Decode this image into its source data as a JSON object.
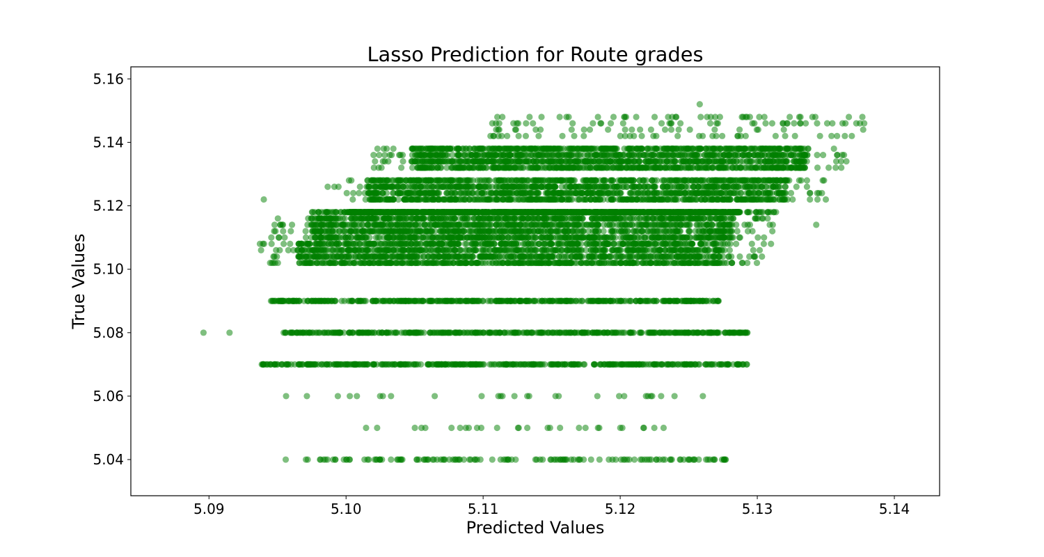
{
  "chart_data": {
    "type": "scatter",
    "title": "Lasso Prediction for Route grades",
    "xlabel": "Predicted Values",
    "ylabel": "True Values",
    "xlim": [
      5.0843,
      5.1433
    ],
    "ylim": [
      5.0286,
      5.1638
    ],
    "xticks": [
      "5.09",
      "5.10",
      "5.11",
      "5.12",
      "5.13",
      "5.14"
    ],
    "yticks": [
      "5.04",
      "5.06",
      "5.08",
      "5.10",
      "5.12",
      "5.14",
      "5.16"
    ],
    "grid": false,
    "legend": "none",
    "marker_color": "#008000",
    "marker_alpha": 0.5,
    "bands": [
      {
        "y": 5.04,
        "x_range": [
          5.0955,
          5.1281
        ],
        "density": "medium"
      },
      {
        "y": 5.05,
        "x_range": [
          5.1009,
          5.1248
        ],
        "density": "sparse"
      },
      {
        "y": 5.06,
        "x_range": [
          5.0955,
          5.1261
        ],
        "density": "sparse"
      },
      {
        "y": 5.07,
        "x_range": [
          5.0938,
          5.1294
        ],
        "density": "high"
      },
      {
        "y": 5.08,
        "x_range": [
          5.0953,
          5.1293
        ],
        "density": "high"
      },
      {
        "y": 5.09,
        "x_range": [
          5.0945,
          5.1272
        ],
        "density": "high"
      },
      {
        "y": 5.1,
        "x_range": [
          5.0935,
          5.1305
        ],
        "density": "very-high",
        "y_spread": [
          5.102,
          5.108
        ]
      },
      {
        "y": 5.113,
        "x_range": [
          5.0945,
          5.1312
        ],
        "density": "very-high",
        "y_spread": [
          5.11,
          5.116
        ]
      },
      {
        "y": 5.118,
        "x_range": [
          5.0975,
          5.1315
        ],
        "density": "very-high"
      },
      {
        "y": 5.125,
        "x_range": [
          5.0985,
          5.135
        ],
        "density": "very-high",
        "y_spread": [
          5.122,
          5.128
        ]
      },
      {
        "y": 5.135,
        "x_range": [
          5.102,
          5.1365
        ],
        "density": "very-high",
        "y_spread": [
          5.132,
          5.138
        ]
      },
      {
        "y": 5.143,
        "x_range": [
          5.1105,
          5.1378
        ],
        "density": "medium",
        "y_spread": [
          5.142,
          5.148
        ]
      }
    ],
    "outliers": [
      [
        5.0896,
        5.08
      ],
      [
        5.0915,
        5.08
      ],
      [
        5.0938,
        5.106
      ],
      [
        5.094,
        5.122
      ],
      [
        5.1258,
        5.152
      ],
      [
        5.1378,
        5.146
      ],
      [
        5.1365,
        5.134
      ],
      [
        5.135,
        5.122
      ],
      [
        5.1348,
        5.136
      ],
      [
        5.1343,
        5.114
      ],
      [
        5.131,
        5.108
      ],
      [
        5.1345,
        5.124
      ]
    ]
  }
}
